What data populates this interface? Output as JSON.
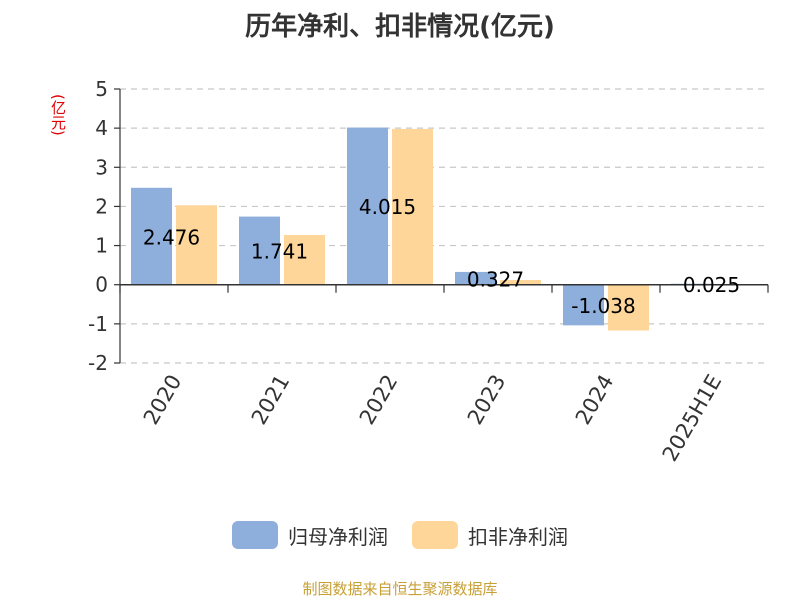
{
  "chart_data": {
    "type": "bar",
    "title": "历年净利、扣非情况(亿元)",
    "ylabel": "(亿元)",
    "xlabel": "",
    "categories": [
      "2020",
      "2021",
      "2022",
      "2023",
      "2024",
      "2025H1E"
    ],
    "series": [
      {
        "name": "归母净利润",
        "color": "#8eaedb",
        "values": [
          2.476,
          1.741,
          4.015,
          0.327,
          -1.038,
          0.025
        ],
        "labels": [
          "2.476",
          "1.741",
          "4.015",
          "0.327",
          "-1.038",
          "0.025"
        ]
      },
      {
        "name": "扣非净利润",
        "color": "#ffd699",
        "values": [
          2.03,
          1.27,
          3.98,
          0.12,
          -1.17,
          0.01
        ]
      }
    ],
    "ylim": [
      -2,
      5
    ],
    "yticks": [
      "-2",
      "-1",
      "0",
      "1",
      "2",
      "3",
      "4",
      "5"
    ],
    "grid": true,
    "legend_position": "bottom"
  },
  "source": "制图数据来自恒生聚源数据库"
}
